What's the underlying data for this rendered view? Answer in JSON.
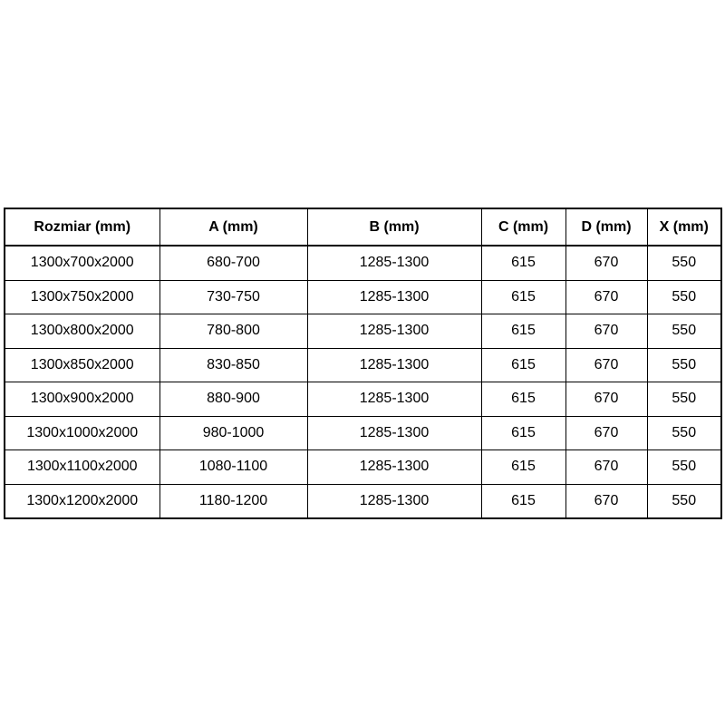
{
  "page": {
    "background_color": "#ffffff",
    "border_color": "#000000",
    "text_color": "#000000"
  },
  "table": {
    "columns": [
      "Rozmiar (mm)",
      "A (mm)",
      "B (mm)",
      "C (mm)",
      "D (mm)",
      "X (mm)"
    ],
    "rows": [
      [
        "1300x700x2000",
        "680-700",
        "1285-1300",
        "615",
        "670",
        "550"
      ],
      [
        "1300x750x2000",
        "730-750",
        "1285-1300",
        "615",
        "670",
        "550"
      ],
      [
        "1300x800x2000",
        "780-800",
        "1285-1300",
        "615",
        "670",
        "550"
      ],
      [
        "1300x850x2000",
        "830-850",
        "1285-1300",
        "615",
        "670",
        "550"
      ],
      [
        "1300x900x2000",
        "880-900",
        "1285-1300",
        "615",
        "670",
        "550"
      ],
      [
        "1300x1000x2000",
        "980-1000",
        "1285-1300",
        "615",
        "670",
        "550"
      ],
      [
        "1300x1100x2000",
        "1080-1100",
        "1285-1300",
        "615",
        "670",
        "550"
      ],
      [
        "1300x1200x2000",
        "1180-1200",
        "1285-1300",
        "615",
        "670",
        "550"
      ]
    ]
  }
}
